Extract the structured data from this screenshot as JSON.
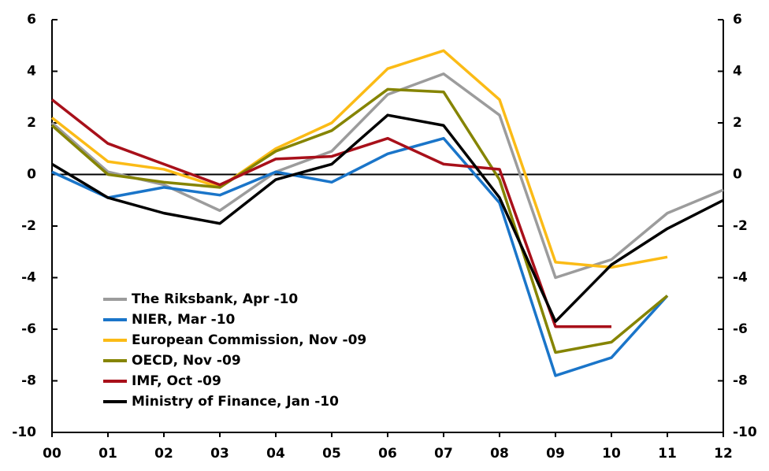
{
  "chart_data": {
    "type": "line",
    "categories": [
      "00",
      "01",
      "02",
      "03",
      "04",
      "05",
      "06",
      "07",
      "08",
      "09",
      "10",
      "11",
      "12"
    ],
    "series": [
      {
        "name": "The Riksbank, Apr -10",
        "color": "#9c9c9c",
        "values": [
          2.0,
          0.1,
          -0.4,
          -1.4,
          0.1,
          0.9,
          3.1,
          3.9,
          2.3,
          -4.0,
          -3.3,
          -1.5,
          -0.6
        ]
      },
      {
        "name": "NIER, Mar -10",
        "color": "#1a75c9",
        "values": [
          0.1,
          -0.9,
          -0.5,
          -0.8,
          0.1,
          -0.3,
          0.8,
          1.4,
          -1.1,
          -7.8,
          -7.1,
          -4.7,
          null
        ]
      },
      {
        "name": "European Commission, Nov -09",
        "color": "#fbbb16",
        "values": [
          2.2,
          0.5,
          0.2,
          -0.5,
          1.0,
          2.0,
          4.1,
          4.8,
          2.9,
          -3.4,
          -3.6,
          -3.2,
          null
        ]
      },
      {
        "name": "OECD, Nov -09",
        "color": "#858400",
        "values": [
          1.9,
          0.0,
          -0.3,
          -0.5,
          0.9,
          1.7,
          3.3,
          3.2,
          -0.2,
          -6.9,
          -6.5,
          -4.7,
          null
        ]
      },
      {
        "name": "IMF, Oct -09",
        "color": "#a8101a",
        "values": [
          2.9,
          1.2,
          0.4,
          -0.4,
          0.6,
          0.7,
          1.4,
          0.4,
          0.2,
          -5.9,
          -5.9,
          null,
          null
        ]
      },
      {
        "name": "Ministry of Finance, Jan -10",
        "color": "#000000",
        "values": [
          0.4,
          -0.9,
          -1.5,
          -1.9,
          -0.2,
          0.4,
          2.3,
          1.9,
          -0.9,
          -5.7,
          -3.5,
          -2.1,
          -1.0
        ]
      }
    ],
    "ylim": [
      -10,
      6
    ],
    "yticks": [
      -10,
      -8,
      -6,
      -4,
      -2,
      0,
      2,
      4,
      6
    ],
    "y2lim": [
      -10,
      6
    ],
    "y2ticks": [
      -10,
      -8,
      -6,
      -4,
      -2,
      0,
      2,
      4,
      6
    ],
    "legend": "lower-left"
  }
}
